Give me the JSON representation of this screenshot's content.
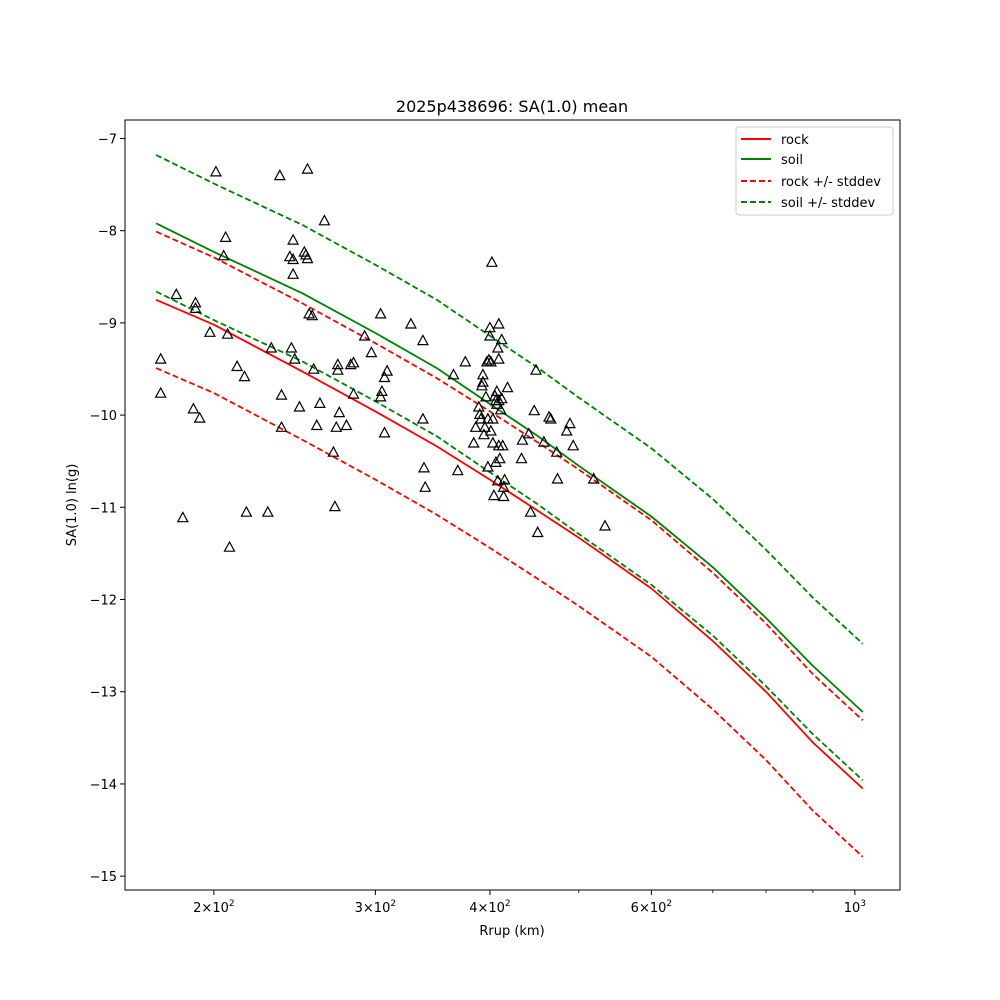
{
  "chart_data": {
    "type": "line",
    "title": "2025p438696: SA(1.0) mean",
    "xlabel": "Rrup (km)",
    "ylabel": "SA(1.0) ln(g)",
    "x_scale": "log",
    "xlim": [
      160,
      1120
    ],
    "ylim": [
      -15.15,
      -6.8
    ],
    "yticks": [
      -15,
      -14,
      -13,
      -12,
      -11,
      -10,
      -9,
      -8,
      -7
    ],
    "yticklabels": [
      "−15",
      "−14",
      "−13",
      "−12",
      "−11",
      "−10",
      "−9",
      "−8",
      "−7"
    ],
    "xticks": [
      {
        "value": 200,
        "base": "2",
        "mult": "10",
        "exp": "2",
        "sep": "×"
      },
      {
        "value": 300,
        "base": "3",
        "mult": "10",
        "exp": "2",
        "sep": "×"
      },
      {
        "value": 400,
        "base": "4",
        "mult": "10",
        "exp": "2",
        "sep": "×"
      },
      {
        "value": 600,
        "base": "6",
        "mult": "10",
        "exp": "2",
        "sep": "×"
      },
      {
        "value": 1000,
        "base": "",
        "mult": "10",
        "exp": "3",
        "sep": ""
      }
    ],
    "minor_xticks": [
      500,
      700,
      800,
      900
    ],
    "legend": {
      "placement": "top-right",
      "entries": [
        {
          "label": "rock",
          "color": "#ff0000",
          "dash": false
        },
        {
          "label": "soil",
          "color": "#008000",
          "dash": false
        },
        {
          "label": "rock +/- stddev",
          "color": "#ff0000",
          "dash": true
        },
        {
          "label": "soil +/- stddev",
          "color": "#008000",
          "dash": true
        }
      ]
    },
    "series": [
      {
        "name": "rock",
        "color": "#ff0000",
        "dash": false,
        "x": [
          173,
          200,
          250,
          300,
          350,
          400,
          450,
          500,
          600,
          700,
          800,
          900,
          1020
        ],
        "y": [
          -8.75,
          -9.02,
          -9.53,
          -9.96,
          -10.34,
          -10.7,
          -11.03,
          -11.33,
          -11.88,
          -12.45,
          -13.0,
          -13.55,
          -14.05
        ]
      },
      {
        "name": "rock +/- stddev",
        "color": "#ff0000",
        "dash": true,
        "x": [
          173,
          200,
          250,
          300,
          350,
          400,
          450,
          500,
          600,
          700,
          800,
          900,
          1020
        ],
        "y": [
          -8.01,
          -8.29,
          -8.79,
          -9.22,
          -9.6,
          -9.96,
          -10.29,
          -10.59,
          -11.14,
          -11.71,
          -12.26,
          -12.81,
          -13.31
        ]
      },
      {
        "name": "rock +/- stddev",
        "color": "#ff0000",
        "dash": true,
        "x": [
          173,
          200,
          250,
          300,
          350,
          400,
          450,
          500,
          600,
          700,
          800,
          900,
          1020
        ],
        "y": [
          -9.49,
          -9.76,
          -10.27,
          -10.7,
          -11.08,
          -11.44,
          -11.77,
          -12.07,
          -12.62,
          -13.19,
          -13.74,
          -14.29,
          -14.79
        ]
      },
      {
        "name": "soil",
        "color": "#008000",
        "dash": false,
        "x": [
          173,
          200,
          250,
          300,
          350,
          400,
          450,
          500,
          600,
          700,
          800,
          900,
          1020
        ],
        "y": [
          -7.92,
          -8.23,
          -8.68,
          -9.11,
          -9.49,
          -9.88,
          -10.22,
          -10.55,
          -11.1,
          -11.65,
          -12.2,
          -12.72,
          -13.22
        ]
      },
      {
        "name": "soil +/- stddev",
        "color": "#008000",
        "dash": true,
        "x": [
          173,
          200,
          250,
          300,
          350,
          400,
          450,
          500,
          600,
          700,
          800,
          900,
          1020
        ],
        "y": [
          -7.18,
          -7.49,
          -7.94,
          -8.37,
          -8.75,
          -9.14,
          -9.48,
          -9.81,
          -10.36,
          -10.91,
          -11.46,
          -11.98,
          -12.48
        ]
      },
      {
        "name": "soil +/- stddev",
        "color": "#008000",
        "dash": true,
        "x": [
          173,
          200,
          250,
          300,
          350,
          400,
          450,
          500,
          600,
          700,
          800,
          900,
          1020
        ],
        "y": [
          -8.66,
          -8.97,
          -9.42,
          -9.85,
          -10.23,
          -10.62,
          -10.96,
          -11.29,
          -11.84,
          -12.39,
          -12.94,
          -13.46,
          -13.96
        ]
      }
    ],
    "observations": {
      "marker": "triangle",
      "points": [
        [
          201,
          -7.36
        ],
        [
          236,
          -7.4
        ],
        [
          253,
          -7.33
        ],
        [
          206,
          -8.07
        ],
        [
          205,
          -8.27
        ],
        [
          242,
          -8.28
        ],
        [
          244,
          -8.1
        ],
        [
          244,
          -8.31
        ],
        [
          244,
          -8.47
        ],
        [
          251,
          -8.23
        ],
        [
          252,
          -8.26
        ],
        [
          253,
          -8.3
        ],
        [
          264,
          -7.89
        ],
        [
          182,
          -8.69
        ],
        [
          191,
          -8.78
        ],
        [
          191,
          -8.84
        ],
        [
          198,
          -9.1
        ],
        [
          207,
          -9.12
        ],
        [
          175,
          -9.39
        ],
        [
          175,
          -9.76
        ],
        [
          190,
          -9.93
        ],
        [
          193,
          -10.03
        ],
        [
          212,
          -9.47
        ],
        [
          216,
          -9.58
        ],
        [
          231,
          -9.27
        ],
        [
          237,
          -9.78
        ],
        [
          237,
          -10.13
        ],
        [
          243,
          -9.27
        ],
        [
          245,
          -9.39
        ],
        [
          248,
          -9.91
        ],
        [
          254,
          -8.9
        ],
        [
          256,
          -8.92
        ],
        [
          257,
          -9.5
        ],
        [
          261,
          -9.87
        ],
        [
          259,
          -10.11
        ],
        [
          270,
          -10.4
        ],
        [
          272,
          -10.13
        ],
        [
          273,
          -9.45
        ],
        [
          273,
          -9.51
        ],
        [
          274,
          -9.97
        ],
        [
          279,
          -10.11
        ],
        [
          282,
          -9.45
        ],
        [
          284,
          -9.43
        ],
        [
          284,
          -9.77
        ],
        [
          292,
          -9.14
        ],
        [
          297,
          -9.32
        ],
        [
          304,
          -8.9
        ],
        [
          304,
          -9.8
        ],
        [
          305,
          -9.74
        ],
        [
          307,
          -9.59
        ],
        [
          309,
          -9.52
        ],
        [
          307,
          -10.19
        ],
        [
          328,
          -9.01
        ],
        [
          338,
          -9.19
        ],
        [
          338,
          -10.04
        ],
        [
          339,
          -10.57
        ],
        [
          340,
          -10.78
        ],
        [
          365,
          -9.56
        ],
        [
          369,
          -10.6
        ],
        [
          376,
          -9.42
        ],
        [
          271,
          -10.99
        ],
        [
          217,
          -11.05
        ],
        [
          229,
          -11.05
        ],
        [
          185,
          -11.11
        ],
        [
          208,
          -11.43
        ],
        [
          384,
          -10.3
        ],
        [
          386,
          -10.13
        ],
        [
          389,
          -9.91
        ],
        [
          390,
          -9.99
        ],
        [
          391,
          -10.04
        ],
        [
          392,
          -9.68
        ],
        [
          393,
          -9.56
        ],
        [
          393,
          -9.64
        ],
        [
          394,
          -10.21
        ],
        [
          395,
          -10.13
        ],
        [
          396,
          -9.8
        ],
        [
          397,
          -9.42
        ],
        [
          398,
          -10.04
        ],
        [
          398,
          -10.56
        ],
        [
          399,
          -9.4
        ],
        [
          400,
          -9.05
        ],
        [
          400,
          -9.14
        ],
        [
          401,
          -9.42
        ],
        [
          401,
          -10.17
        ],
        [
          402,
          -8.34
        ],
        [
          403,
          -10.04
        ],
        [
          403,
          -10.3
        ],
        [
          404,
          -10.87
        ],
        [
          405,
          -9.79
        ],
        [
          406,
          -9.84
        ],
        [
          406,
          -10.51
        ],
        [
          407,
          -9.74
        ],
        [
          407,
          -9.88
        ],
        [
          408,
          -9.27
        ],
        [
          408,
          -10.71
        ],
        [
          409,
          -9.01
        ],
        [
          409,
          -9.39
        ],
        [
          409,
          -9.84
        ],
        [
          409,
          -10.33
        ],
        [
          410,
          -10.47
        ],
        [
          411,
          -9.94
        ],
        [
          412,
          -9.82
        ],
        [
          412,
          -9.18
        ],
        [
          413,
          -10.33
        ],
        [
          414,
          -10.78
        ],
        [
          414,
          -10.88
        ],
        [
          415,
          -10.7
        ],
        [
          418,
          -9.7
        ],
        [
          433,
          -10.47
        ],
        [
          434,
          -10.27
        ],
        [
          441,
          -10.2
        ],
        [
          443,
          -11.05
        ],
        [
          447,
          -9.95
        ],
        [
          449,
          -9.51
        ],
        [
          451,
          -11.27
        ],
        [
          458,
          -10.29
        ],
        [
          464,
          -10.02
        ],
        [
          466,
          -10.04
        ],
        [
          473,
          -10.4
        ],
        [
          474,
          -10.69
        ],
        [
          485,
          -10.17
        ],
        [
          489,
          -10.09
        ],
        [
          493,
          -10.33
        ],
        [
          519,
          -10.69
        ],
        [
          534,
          -11.2
        ]
      ]
    }
  }
}
